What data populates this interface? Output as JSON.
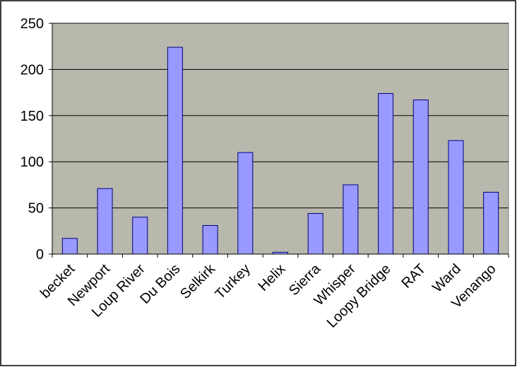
{
  "chart_data": {
    "type": "bar",
    "categories": [
      "becket",
      "Newport",
      "Loup River",
      "Du Bois",
      "Selkirk",
      "Turkey",
      "Helix",
      "Sierra",
      "Whisper",
      "Loopy Bridge",
      "RAT",
      "Ward",
      "Venango"
    ],
    "values": [
      17,
      71,
      40,
      224,
      31,
      110,
      2,
      44,
      75,
      174,
      167,
      123,
      67
    ],
    "color": "#9999ff",
    "ylim": [
      0,
      250
    ],
    "yticks": [
      0,
      50,
      100,
      150,
      200,
      250
    ],
    "grid": true
  }
}
